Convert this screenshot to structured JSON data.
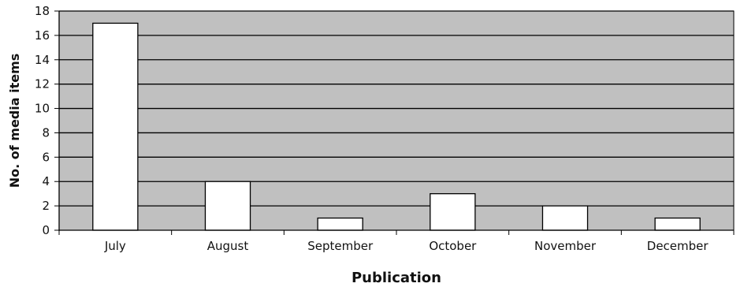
{
  "chart_data": {
    "type": "bar",
    "categories": [
      "July",
      "August",
      "September",
      "October",
      "November",
      "December"
    ],
    "values": [
      17,
      4,
      1,
      3,
      2,
      1
    ],
    "xlabel": "Publication",
    "ylabel": "No. of media items",
    "ylim": [
      0,
      18
    ],
    "yticks": [
      0,
      2,
      4,
      6,
      8,
      10,
      12,
      14,
      16,
      18
    ],
    "grid": true,
    "legend": "none",
    "colors": {
      "plot_background": "#c0c0c0",
      "bar_fill": "#ffffff",
      "bar_stroke": "#000000",
      "gridline": "#000000"
    }
  }
}
